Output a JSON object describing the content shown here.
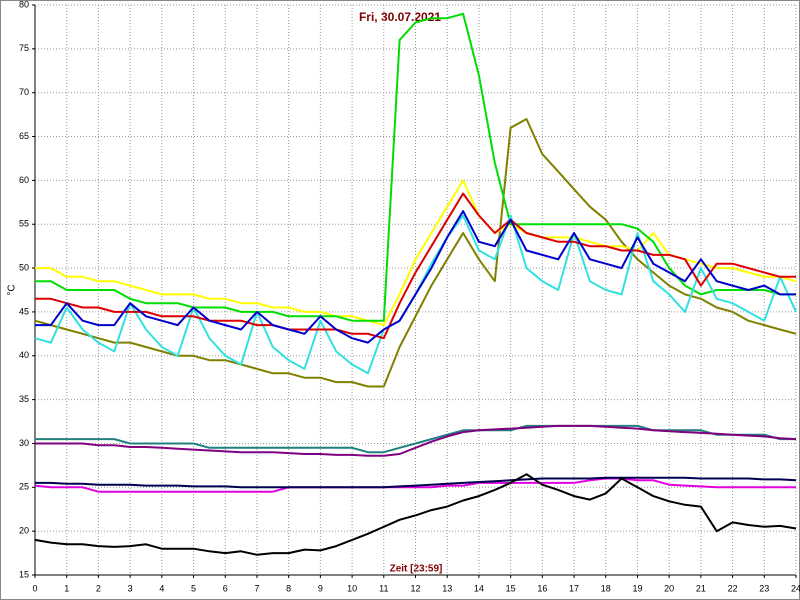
{
  "chart_data": {
    "type": "line",
    "title": "Fri, 30.07.2021",
    "x_label": "Zeit [23:59]",
    "y_label": "°C",
    "xlim": [
      0,
      24
    ],
    "ylim": [
      15,
      80
    ],
    "xticks": [
      0,
      1,
      2,
      3,
      4,
      5,
      6,
      7,
      8,
      9,
      10,
      11,
      12,
      13,
      14,
      15,
      16,
      17,
      18,
      19,
      20,
      21,
      22,
      23,
      24
    ],
    "yticks": [
      15,
      20,
      25,
      30,
      35,
      40,
      45,
      50,
      55,
      60,
      65,
      70,
      75,
      80
    ],
    "grid": true,
    "x": [
      0,
      0.5,
      1,
      1.5,
      2,
      2.5,
      3,
      3.5,
      4,
      4.5,
      5,
      5.5,
      6,
      6.5,
      7,
      7.5,
      8,
      8.5,
      9,
      9.5,
      10,
      10.5,
      11,
      11.5,
      12,
      12.5,
      13,
      13.5,
      14,
      14.5,
      15,
      15.5,
      16,
      16.5,
      17,
      17.5,
      18,
      18.5,
      19,
      19.5,
      20,
      20.5,
      21,
      21.5,
      22,
      22.5,
      23,
      23.5,
      24
    ],
    "series": [
      {
        "color": "#208080",
        "values": [
          30.5,
          30.5,
          30.5,
          30.5,
          30.5,
          30.5,
          30,
          30,
          30,
          30,
          30,
          29.5,
          29.5,
          29.5,
          29.5,
          29.5,
          29.5,
          29.5,
          29.5,
          29.5,
          29.5,
          29,
          29,
          29.5,
          30,
          30.5,
          31,
          31.5,
          31.5,
          31.5,
          31.5,
          32,
          32,
          32,
          32,
          32,
          32,
          32,
          32,
          31.5,
          31.5,
          31.5,
          31.5,
          31,
          31,
          31,
          31,
          30.5,
          30.5
        ]
      },
      {
        "color": "#800080",
        "values": [
          30,
          30,
          30,
          30,
          29.8,
          29.8,
          29.6,
          29.6,
          29.5,
          29.4,
          29.3,
          29.2,
          29.1,
          29,
          29,
          29,
          28.9,
          28.8,
          28.8,
          28.7,
          28.7,
          28.6,
          28.6,
          28.8,
          29.5,
          30.2,
          30.8,
          31.3,
          31.5,
          31.6,
          31.7,
          31.8,
          31.9,
          32,
          32,
          32,
          31.9,
          31.8,
          31.7,
          31.5,
          31.4,
          31.3,
          31.2,
          31.1,
          31,
          30.9,
          30.8,
          30.6,
          30.5
        ]
      },
      {
        "color": "#e000e0",
        "values": [
          25.2,
          25,
          25,
          25,
          24.5,
          24.5,
          24.5,
          24.5,
          24.5,
          24.5,
          24.5,
          24.5,
          24.5,
          24.5,
          24.5,
          24.5,
          25,
          25,
          25,
          25,
          25,
          25,
          25,
          25,
          25,
          25,
          25.2,
          25.2,
          25.5,
          25.5,
          25.5,
          25.5,
          25.5,
          25.5,
          25.5,
          25.8,
          26,
          26,
          25.8,
          25.8,
          25.3,
          25.2,
          25.1,
          25,
          25,
          25,
          25,
          25,
          25
        ]
      },
      {
        "color": "#000050",
        "values": [
          25.5,
          25.5,
          25.4,
          25.4,
          25.3,
          25.3,
          25.3,
          25.2,
          25.2,
          25.2,
          25.1,
          25.1,
          25.1,
          25,
          25,
          25,
          25,
          25,
          25,
          25,
          25,
          25,
          25,
          25.1,
          25.2,
          25.3,
          25.4,
          25.5,
          25.6,
          25.7,
          25.8,
          25.9,
          26,
          26,
          26,
          26,
          26.1,
          26.1,
          26.1,
          26.1,
          26.1,
          26.1,
          26,
          26,
          26,
          26,
          25.9,
          25.9,
          25.8
        ]
      },
      {
        "color": "#000000",
        "values": [
          19,
          18.7,
          18.5,
          18.5,
          18.3,
          18.2,
          18.3,
          18.5,
          18,
          18,
          18,
          17.7,
          17.5,
          17.7,
          17.3,
          17.5,
          17.5,
          17.9,
          17.8,
          18.3,
          19,
          19.7,
          20.5,
          21.3,
          21.8,
          22.4,
          22.8,
          23.5,
          24,
          24.7,
          25.5,
          26.5,
          25.3,
          24.7,
          24,
          23.6,
          24.3,
          26,
          25,
          24,
          23.4,
          23,
          22.8,
          20,
          21,
          20.7,
          20.5,
          20.6,
          20.3
        ]
      },
      {
        "color": "#808000",
        "values": [
          44,
          43.5,
          43,
          42.5,
          42,
          41.5,
          41.5,
          41,
          40.5,
          40,
          40,
          39.5,
          39.5,
          39,
          38.5,
          38,
          38,
          37.5,
          37.5,
          37,
          37,
          36.5,
          36.5,
          41,
          44.5,
          48,
          51,
          54,
          51,
          48.5,
          66,
          67,
          63,
          61,
          59,
          57,
          55.5,
          53,
          51,
          49.5,
          48,
          47,
          46.5,
          45.5,
          45,
          44,
          43.5,
          43,
          42.5
        ]
      },
      {
        "color": "#ffff00",
        "values": [
          50,
          50,
          49,
          49,
          48.5,
          48.5,
          48,
          47.5,
          47,
          47,
          47,
          46.5,
          46.5,
          46,
          46,
          45.5,
          45.5,
          45,
          45,
          44.5,
          44.5,
          44,
          43.5,
          47,
          51,
          54,
          57,
          60,
          56,
          54,
          55,
          54,
          53.5,
          53.5,
          53.5,
          53,
          52.5,
          52.5,
          52,
          54,
          51.5,
          51,
          50.5,
          50,
          50,
          49.5,
          49,
          49,
          48.5
        ]
      },
      {
        "color": "#00dd00",
        "values": [
          48.5,
          48.5,
          47.5,
          47.5,
          47.5,
          47.5,
          46.5,
          46,
          46,
          46,
          45.5,
          45.5,
          45.5,
          45,
          45,
          45,
          44.5,
          44.5,
          44.5,
          44.5,
          44,
          44,
          44,
          76,
          78,
          78.5,
          78.5,
          79,
          72,
          62,
          55,
          55,
          55,
          55,
          55,
          55,
          55,
          55,
          54.5,
          53,
          50,
          48,
          47,
          47.5,
          47.5,
          47.5,
          47.5,
          47,
          47
        ]
      },
      {
        "color": "#33e0e0",
        "values": [
          42,
          41.5,
          45.5,
          43,
          41.5,
          40.5,
          46,
          43,
          41,
          40,
          45.5,
          42,
          40,
          39,
          45,
          41,
          39.5,
          38.5,
          44,
          40.5,
          39,
          38,
          43,
          44,
          47,
          50.5,
          53.5,
          56,
          52,
          51,
          56,
          50,
          48.5,
          47.5,
          54,
          48.5,
          47.5,
          47,
          54,
          48.5,
          47,
          45,
          50,
          46.5,
          46,
          45,
          44,
          49,
          45
        ]
      },
      {
        "color": "#dd0000",
        "values": [
          46.5,
          46.5,
          46,
          45.5,
          45.5,
          45,
          45,
          45,
          44.5,
          44.5,
          44.5,
          44,
          44,
          44,
          43.5,
          43.5,
          43,
          43,
          43,
          43,
          42.5,
          42.5,
          42,
          46,
          49.5,
          52.5,
          55.5,
          58.5,
          56,
          54,
          55.5,
          54,
          53.5,
          53,
          53,
          52.5,
          52.5,
          52,
          52,
          51.5,
          51.5,
          51,
          48,
          50.5,
          50.5,
          50,
          49.5,
          49,
          49
        ]
      },
      {
        "color": "#0000cc",
        "values": [
          43.5,
          43.5,
          46,
          44,
          43.5,
          43.5,
          46,
          44.5,
          44,
          43.5,
          45.5,
          44,
          43.5,
          43,
          45,
          43.5,
          43,
          42.5,
          44.5,
          43,
          42,
          41.5,
          43,
          44,
          47,
          50,
          53.5,
          56.5,
          53,
          52.5,
          55.5,
          52,
          51.5,
          51,
          54,
          51,
          50.5,
          50,
          53.5,
          50.5,
          49.5,
          48.5,
          51,
          48.5,
          48,
          47.5,
          48,
          47,
          47
        ]
      }
    ]
  }
}
